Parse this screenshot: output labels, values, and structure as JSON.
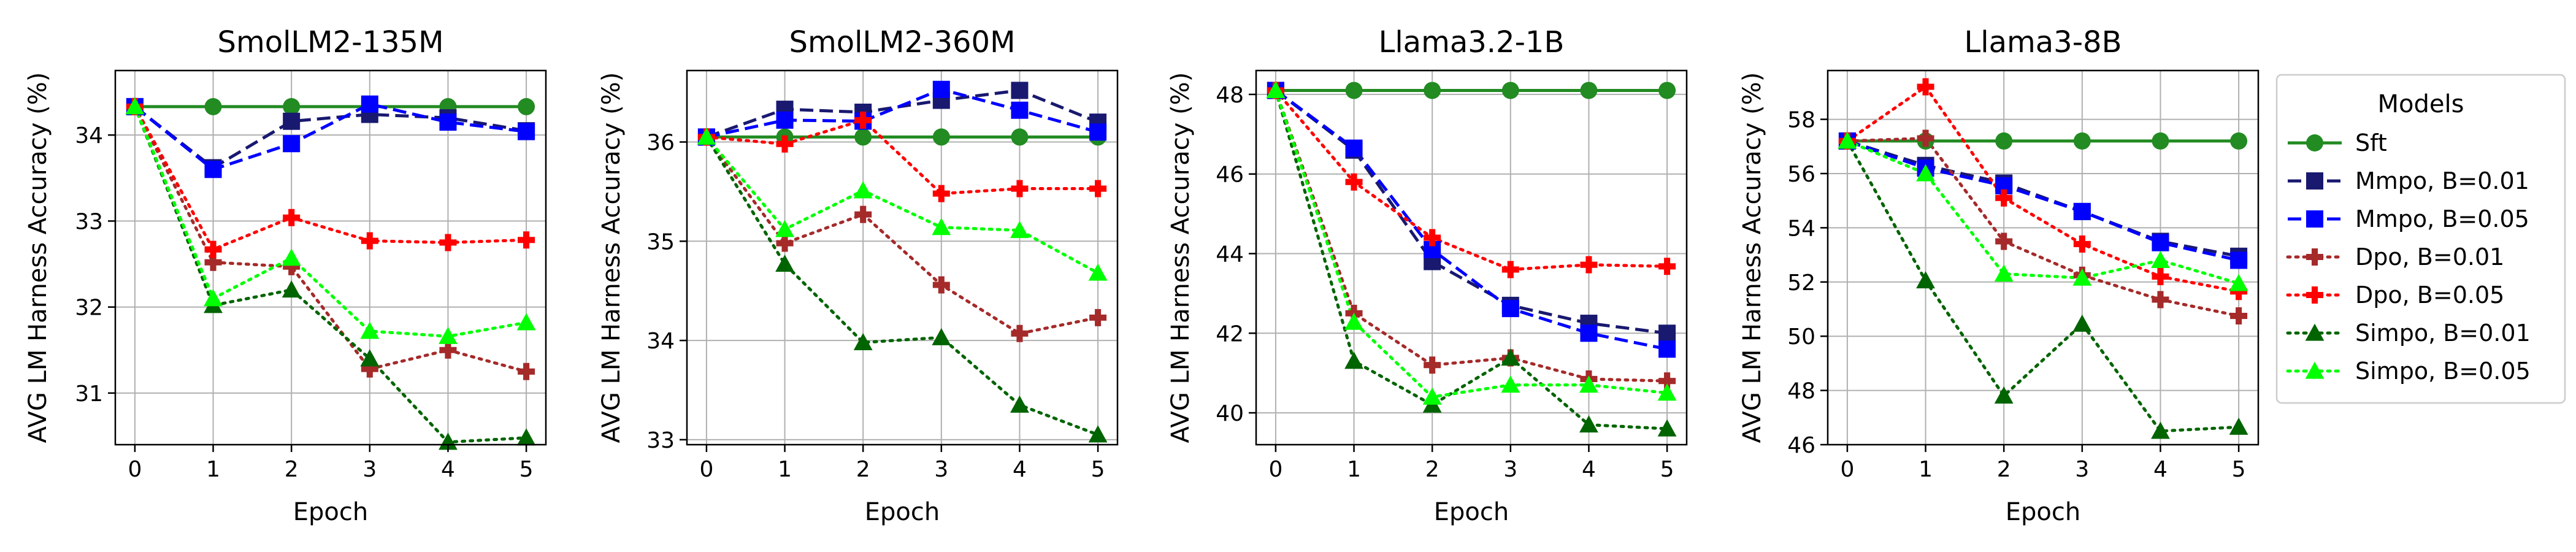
{
  "legend": {
    "title": "Models",
    "position": "right",
    "entries": [
      "Sft",
      "Mmpo, B=0.01",
      "Mmpo, B=0.05",
      "Dpo, B=0.01",
      "Dpo, B=0.05",
      "Simpo, B=0.01",
      "Simpo, B=0.05"
    ]
  },
  "series_styles": [
    {
      "name": "Sft",
      "color": "#228b22",
      "dash": "solid",
      "marker": "circle"
    },
    {
      "name": "Mmpo, B=0.01",
      "color": "#191970",
      "dash": "dashed",
      "marker": "square"
    },
    {
      "name": "Mmpo, B=0.05",
      "color": "#0000ff",
      "dash": "dashed",
      "marker": "square"
    },
    {
      "name": "Dpo, B=0.01",
      "color": "#a52a2a",
      "dash": "dotted",
      "marker": "plus"
    },
    {
      "name": "Dpo, B=0.05",
      "color": "#ff0000",
      "dash": "dotted",
      "marker": "plus"
    },
    {
      "name": "Simpo, B=0.01",
      "color": "#006400",
      "dash": "dotted",
      "marker": "triangle"
    },
    {
      "name": "Simpo, B=0.05",
      "color": "#00ff00",
      "dash": "dotted",
      "marker": "triangle"
    }
  ],
  "chart_data": [
    {
      "type": "line",
      "title": "SmolLM2-135M",
      "xlabel": "Epoch",
      "ylabel": "AVG LM Harness Accuracy (%)",
      "x": [
        0,
        1,
        2,
        3,
        4,
        5
      ],
      "xlim": [
        -0.25,
        5.25
      ],
      "ylim": [
        30.4,
        34.75
      ],
      "yticks": [
        31,
        32,
        33,
        34
      ],
      "grid": true,
      "series": [
        {
          "name": "Sft",
          "values": [
            34.33,
            34.33,
            34.33,
            34.33,
            34.33,
            34.33
          ]
        },
        {
          "name": "Mmpo, B=0.01",
          "values": [
            34.33,
            33.62,
            34.16,
            34.24,
            34.2,
            34.05
          ]
        },
        {
          "name": "Mmpo, B=0.05",
          "values": [
            34.33,
            33.6,
            33.9,
            34.36,
            34.15,
            34.04
          ]
        },
        {
          "name": "Dpo, B=0.01",
          "values": [
            34.33,
            32.52,
            32.47,
            31.28,
            31.5,
            31.25
          ]
        },
        {
          "name": "Dpo, B=0.05",
          "values": [
            34.33,
            32.67,
            33.04,
            32.77,
            32.75,
            32.78
          ]
        },
        {
          "name": "Simpo, B=0.01",
          "values": [
            34.33,
            32.02,
            32.2,
            31.4,
            30.43,
            30.48
          ]
        },
        {
          "name": "Simpo, B=0.05",
          "values": [
            34.33,
            32.1,
            32.57,
            31.72,
            31.66,
            31.82
          ]
        }
      ]
    },
    {
      "type": "line",
      "title": "SmolLM2-360M",
      "xlabel": "Epoch",
      "ylabel": "AVG LM Harness Accuracy (%)",
      "x": [
        0,
        1,
        2,
        3,
        4,
        5
      ],
      "xlim": [
        -0.25,
        5.25
      ],
      "ylim": [
        32.95,
        36.72
      ],
      "yticks": [
        33,
        34,
        35,
        36
      ],
      "grid": true,
      "series": [
        {
          "name": "Sft",
          "values": [
            36.05,
            36.05,
            36.05,
            36.05,
            36.05,
            36.05
          ]
        },
        {
          "name": "Mmpo, B=0.01",
          "values": [
            36.05,
            36.33,
            36.3,
            36.42,
            36.52,
            36.2
          ]
        },
        {
          "name": "Mmpo, B=0.05",
          "values": [
            36.05,
            36.22,
            36.21,
            36.53,
            36.32,
            36.1
          ]
        },
        {
          "name": "Dpo, B=0.01",
          "values": [
            36.05,
            34.98,
            35.27,
            34.56,
            34.07,
            34.23
          ]
        },
        {
          "name": "Dpo, B=0.05",
          "values": [
            36.05,
            35.98,
            36.22,
            35.48,
            35.53,
            35.53
          ]
        },
        {
          "name": "Simpo, B=0.01",
          "values": [
            36.05,
            34.77,
            33.98,
            34.03,
            33.35,
            33.05
          ]
        },
        {
          "name": "Simpo, B=0.05",
          "values": [
            36.05,
            35.12,
            35.51,
            35.14,
            35.11,
            34.68
          ]
        }
      ]
    },
    {
      "type": "line",
      "title": "Llama3.2-1B",
      "xlabel": "Epoch",
      "ylabel": "AVG LM Harness Accuracy (%)",
      "x": [
        0,
        1,
        2,
        3,
        4,
        5
      ],
      "xlim": [
        -0.25,
        5.25
      ],
      "ylim": [
        39.2,
        48.6
      ],
      "yticks": [
        40,
        42,
        44,
        46,
        48
      ],
      "grid": true,
      "series": [
        {
          "name": "Sft",
          "values": [
            48.1,
            48.1,
            48.1,
            48.1,
            48.1,
            48.1
          ]
        },
        {
          "name": "Mmpo, B=0.01",
          "values": [
            48.1,
            46.6,
            43.8,
            42.7,
            42.25,
            42.0
          ]
        },
        {
          "name": "Mmpo, B=0.05",
          "values": [
            48.1,
            46.65,
            44.1,
            42.62,
            42.0,
            41.6
          ]
        },
        {
          "name": "Dpo, B=0.01",
          "values": [
            48.1,
            42.5,
            41.2,
            41.38,
            40.85,
            40.8
          ]
        },
        {
          "name": "Dpo, B=0.05",
          "values": [
            48.1,
            45.8,
            44.4,
            43.6,
            43.72,
            43.68
          ]
        },
        {
          "name": "Simpo, B=0.01",
          "values": [
            48.1,
            41.3,
            40.2,
            41.38,
            39.7,
            39.6
          ]
        },
        {
          "name": "Simpo, B=0.05",
          "values": [
            48.1,
            42.28,
            40.4,
            40.7,
            40.7,
            40.5
          ]
        }
      ]
    },
    {
      "type": "line",
      "title": "Llama3-8B",
      "xlabel": "Epoch",
      "ylabel": "AVG LM Harness Accuracy (%)",
      "x": [
        0,
        1,
        2,
        3,
        4,
        5
      ],
      "xlim": [
        -0.25,
        5.25
      ],
      "ylim": [
        46.0,
        59.8
      ],
      "yticks": [
        46,
        48,
        50,
        52,
        54,
        56,
        58
      ],
      "grid": true,
      "series": [
        {
          "name": "Sft",
          "values": [
            57.2,
            57.2,
            57.2,
            57.2,
            57.2,
            57.2
          ]
        },
        {
          "name": "Mmpo, B=0.01",
          "values": [
            57.2,
            56.3,
            55.65,
            54.6,
            53.5,
            52.95
          ]
        },
        {
          "name": "Mmpo, B=0.05",
          "values": [
            57.2,
            56.2,
            55.55,
            54.6,
            53.45,
            52.8
          ]
        },
        {
          "name": "Dpo, B=0.01",
          "values": [
            57.2,
            57.3,
            53.5,
            52.25,
            51.35,
            50.75
          ]
        },
        {
          "name": "Dpo, B=0.05",
          "values": [
            57.2,
            59.2,
            55.1,
            53.4,
            52.2,
            51.65
          ]
        },
        {
          "name": "Simpo, B=0.01",
          "values": [
            57.2,
            52.05,
            47.8,
            50.45,
            46.5,
            46.65
          ]
        },
        {
          "name": "Simpo, B=0.05",
          "values": [
            57.2,
            56.0,
            52.3,
            52.15,
            52.8,
            51.95
          ]
        }
      ]
    }
  ]
}
